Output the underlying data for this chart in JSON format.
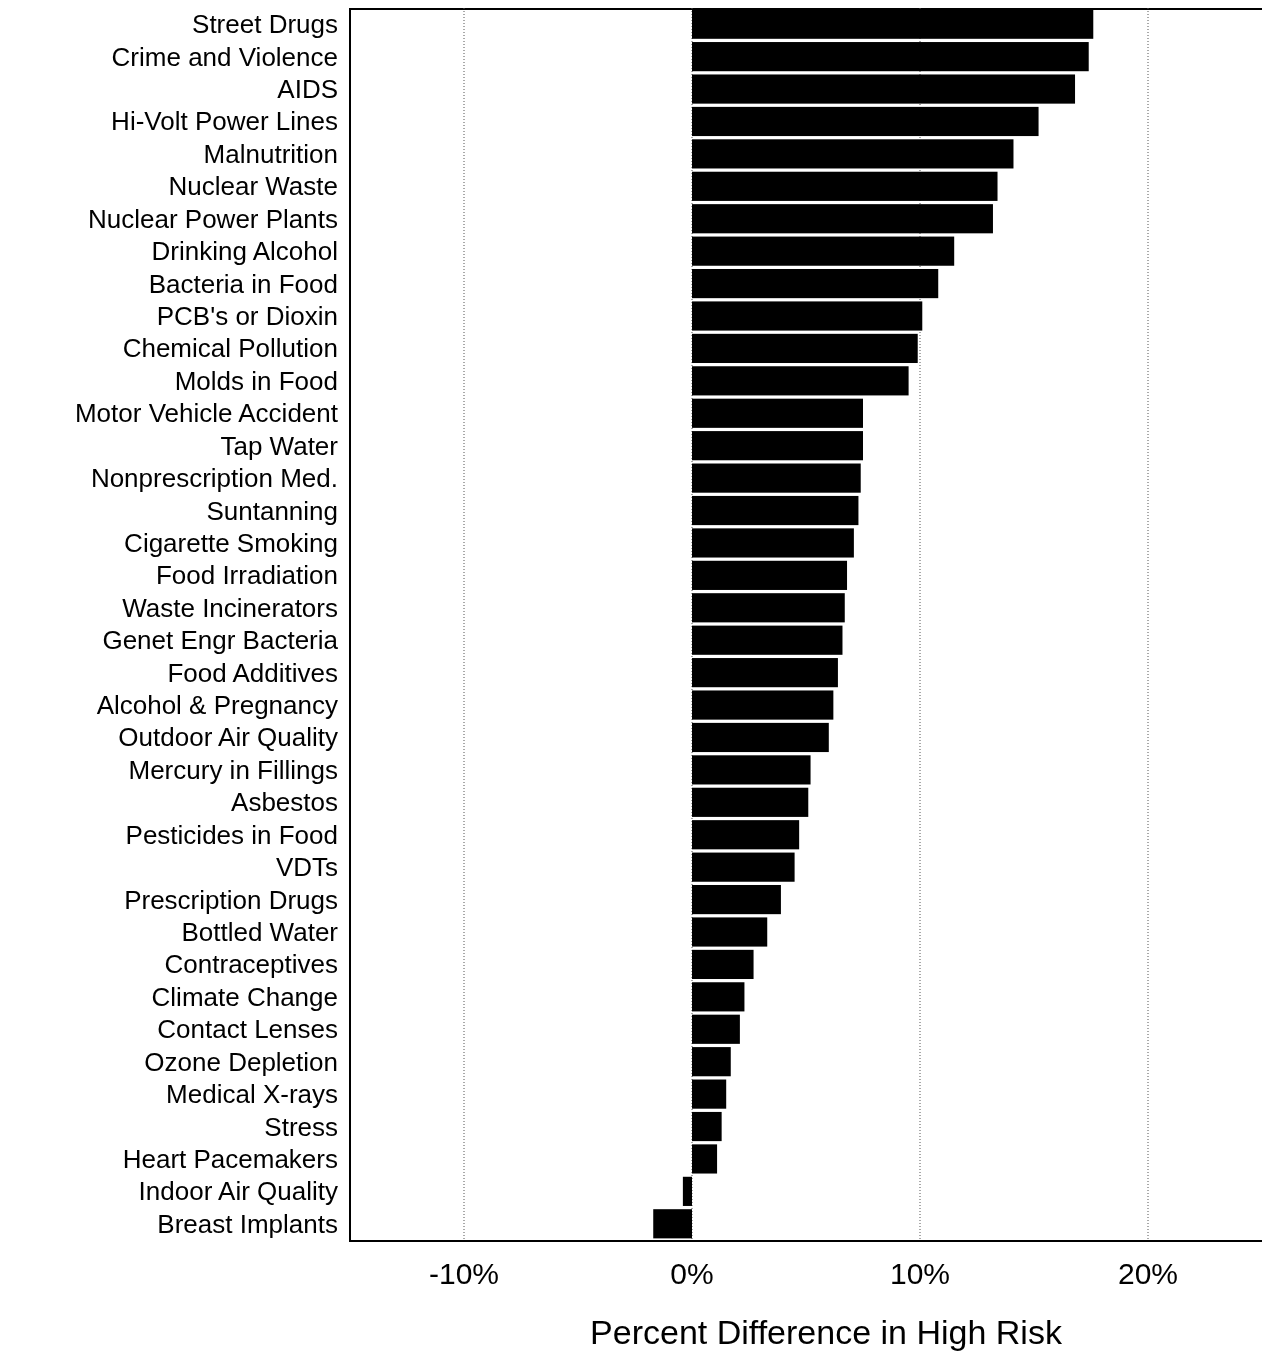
{
  "chart_data": {
    "type": "bar",
    "orientation": "horizontal",
    "xlabel": "Percent Difference in High Risk",
    "categories": [
      "Street Drugs",
      "Crime and Violence",
      "AIDS",
      "Hi-Volt Power Lines",
      "Malnutrition",
      "Nuclear Waste",
      "Nuclear Power Plants",
      "Drinking Alcohol",
      "Bacteria in Food",
      "PCB's or Dioxin",
      "Chemical Pollution",
      "Molds in Food",
      "Motor Vehicle Accident",
      "Tap Water",
      "Nonprescription Med.",
      "Suntanning",
      "Cigarette Smoking",
      "Food Irradiation",
      "Waste Incinerators",
      "Genet Engr Bacteria",
      "Food Additives",
      "Alcohol & Pregnancy",
      "Outdoor Air Quality",
      "Mercury in Fillings",
      "Asbestos",
      "Pesticides in Food",
      "VDTs",
      "Prescription Drugs",
      "Bottled Water",
      "Contraceptives",
      "Climate Change",
      "Contact Lenses",
      "Ozone Depletion",
      "Medical X-rays",
      "Stress",
      "Heart Pacemakers",
      "Indoor Air Quality",
      "Breast Implants"
    ],
    "values": [
      17.6,
      17.4,
      16.8,
      15.2,
      14.1,
      13.4,
      13.2,
      11.5,
      10.8,
      10.1,
      9.9,
      9.5,
      7.5,
      7.5,
      7.4,
      7.3,
      7.1,
      6.8,
      6.7,
      6.6,
      6.4,
      6.2,
      6.0,
      5.2,
      5.1,
      4.7,
      4.5,
      3.9,
      3.3,
      2.7,
      2.3,
      2.1,
      1.7,
      1.5,
      1.3,
      1.1,
      -0.4,
      -1.7
    ],
    "color": "#000000",
    "xlim": [
      -15,
      25
    ],
    "xticks": [
      {
        "value": -10,
        "label": "-10%"
      },
      {
        "value": 0,
        "label": "0%"
      },
      {
        "value": 10,
        "label": "10%"
      },
      {
        "value": 20,
        "label": "20%"
      }
    ],
    "grid": "x"
  }
}
